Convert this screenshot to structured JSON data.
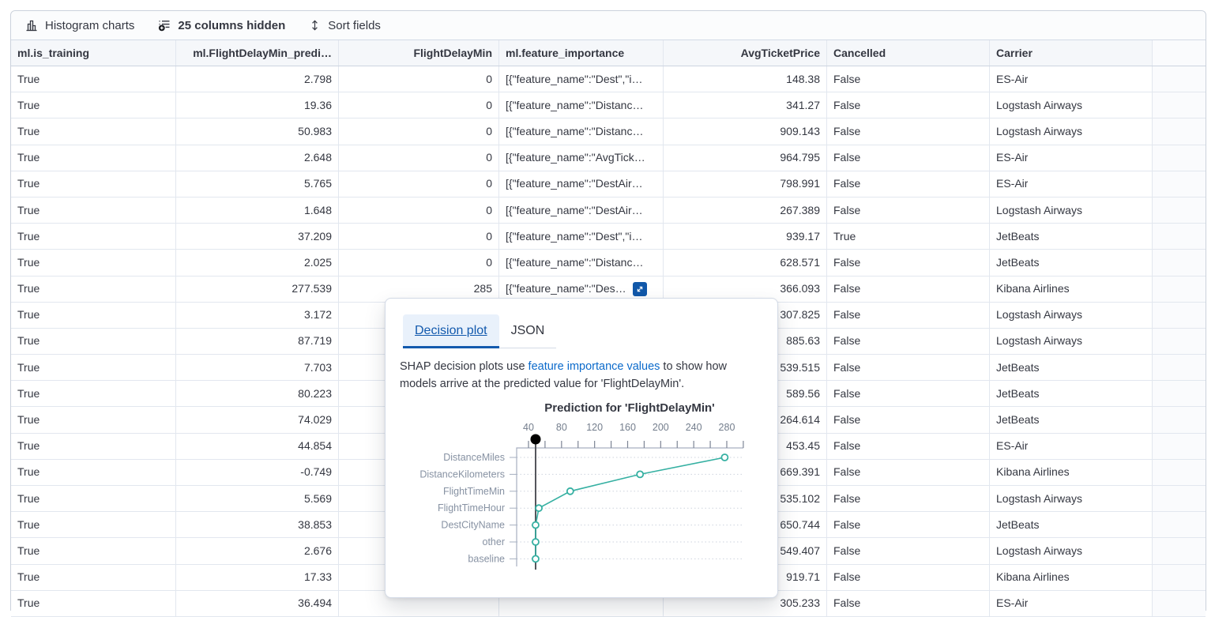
{
  "toolbar": {
    "histogram_label": "Histogram charts",
    "columns_hidden_label": "25 columns hidden",
    "sort_label": "Sort fields"
  },
  "table": {
    "columns": [
      {
        "id": "ml-is-training",
        "label": "ml.is_training"
      },
      {
        "id": "ml-flightdelaymin-prediction",
        "label": "ml.FlightDelayMin_predi…"
      },
      {
        "id": "flightdelaymin",
        "label": "FlightDelayMin"
      },
      {
        "id": "ml-feature-importance",
        "label": "ml.feature_importance"
      },
      {
        "id": "avgticketprice",
        "label": "AvgTicketPrice"
      },
      {
        "id": "cancelled",
        "label": "Cancelled"
      },
      {
        "id": "carrier",
        "label": "Carrier"
      },
      {
        "id": "spacer",
        "label": ""
      }
    ],
    "rows": [
      {
        "cells": [
          "True",
          "2.798",
          "0",
          "[{\"feature_name\":\"Dest\",\"i…",
          "148.38",
          "False",
          "ES-Air"
        ]
      },
      {
        "cells": [
          "True",
          "19.36",
          "0",
          "[{\"feature_name\":\"Distanc…",
          "341.27",
          "False",
          "Logstash Airways"
        ]
      },
      {
        "cells": [
          "True",
          "50.983",
          "0",
          "[{\"feature_name\":\"Distanc…",
          "909.143",
          "False",
          "Logstash Airways"
        ]
      },
      {
        "cells": [
          "True",
          "2.648",
          "0",
          "[{\"feature_name\":\"AvgTick…",
          "964.795",
          "False",
          "ES-Air"
        ]
      },
      {
        "cells": [
          "True",
          "5.765",
          "0",
          "[{\"feature_name\":\"DestAir…",
          "798.991",
          "False",
          "ES-Air"
        ]
      },
      {
        "cells": [
          "True",
          "1.648",
          "0",
          "[{\"feature_name\":\"DestAir…",
          "267.389",
          "False",
          "Logstash Airways"
        ]
      },
      {
        "cells": [
          "True",
          "37.209",
          "0",
          "[{\"feature_name\":\"Dest\",\"i…",
          "939.17",
          "True",
          "JetBeats"
        ]
      },
      {
        "cells": [
          "True",
          "2.025",
          "0",
          "[{\"feature_name\":\"Distanc…",
          "628.571",
          "False",
          "JetBeats"
        ]
      },
      {
        "cells": [
          "True",
          "277.539",
          "285",
          "[{\"feature_name\":\"Des…",
          "366.093",
          "False",
          "Kibana Airlines"
        ],
        "expand": true
      },
      {
        "cells": [
          "True",
          "3.172",
          "",
          "",
          "307.825",
          "False",
          "Logstash Airways"
        ]
      },
      {
        "cells": [
          "True",
          "87.719",
          "",
          "",
          "885.63",
          "False",
          "Logstash Airways"
        ]
      },
      {
        "cells": [
          "True",
          "7.703",
          "",
          "",
          "539.515",
          "False",
          "JetBeats"
        ]
      },
      {
        "cells": [
          "True",
          "80.223",
          "",
          "",
          "589.56",
          "False",
          "JetBeats"
        ]
      },
      {
        "cells": [
          "True",
          "74.029",
          "",
          "",
          "264.614",
          "False",
          "JetBeats"
        ]
      },
      {
        "cells": [
          "True",
          "44.854",
          "",
          "",
          "453.45",
          "False",
          "ES-Air"
        ]
      },
      {
        "cells": [
          "True",
          "-0.749",
          "",
          "",
          "669.391",
          "False",
          "Kibana Airlines"
        ]
      },
      {
        "cells": [
          "True",
          "5.569",
          "",
          "",
          "535.102",
          "False",
          "Logstash Airways"
        ]
      },
      {
        "cells": [
          "True",
          "38.853",
          "",
          "",
          "650.744",
          "False",
          "JetBeats"
        ]
      },
      {
        "cells": [
          "True",
          "2.676",
          "",
          "",
          "549.407",
          "False",
          "Logstash Airways"
        ]
      },
      {
        "cells": [
          "True",
          "17.33",
          "",
          "",
          "919.71",
          "False",
          "Kibana Airlines"
        ]
      },
      {
        "cells": [
          "True",
          "36.494",
          "",
          "",
          "305.233",
          "False",
          "ES-Air"
        ]
      }
    ]
  },
  "popup": {
    "tabs": [
      {
        "label": "Decision plot",
        "active": true
      },
      {
        "label": "JSON",
        "active": false
      }
    ],
    "description": {
      "before_link": "SHAP decision plots use ",
      "link": "feature importance values",
      "after_link": " to show how models arrive at the predicted value for 'FlightDelayMin'."
    }
  },
  "chart_data": {
    "type": "line",
    "title": "Prediction for 'FlightDelayMin'",
    "prediction_field": "FlightDelayMin",
    "x_axis": {
      "position": "top",
      "ticks": [
        40,
        80,
        120,
        160,
        200,
        240,
        280
      ],
      "minor_tick_step": 20,
      "range": [
        26,
        300
      ]
    },
    "categories": [
      "DistanceMiles",
      "DistanceKilometers",
      "FlightTimeMin",
      "FlightTimeHour",
      "DestCityName",
      "other",
      "baseline"
    ],
    "values": [
      277.5,
      175,
      90.5,
      52.5,
      48.6,
      48.6,
      48.6
    ],
    "baseline_marker_value": 48.6,
    "grid": "dotted-horizontal",
    "line_color": "#35b0a2",
    "marker_style": "hollow-circle",
    "baseline_line_color": "#54565c"
  },
  "colors": {
    "link_blue": "#0b6acb",
    "tab_blue": "#1259ad",
    "expand_button_blue": "#1158a9",
    "accent_teal": "#35b0a2"
  }
}
